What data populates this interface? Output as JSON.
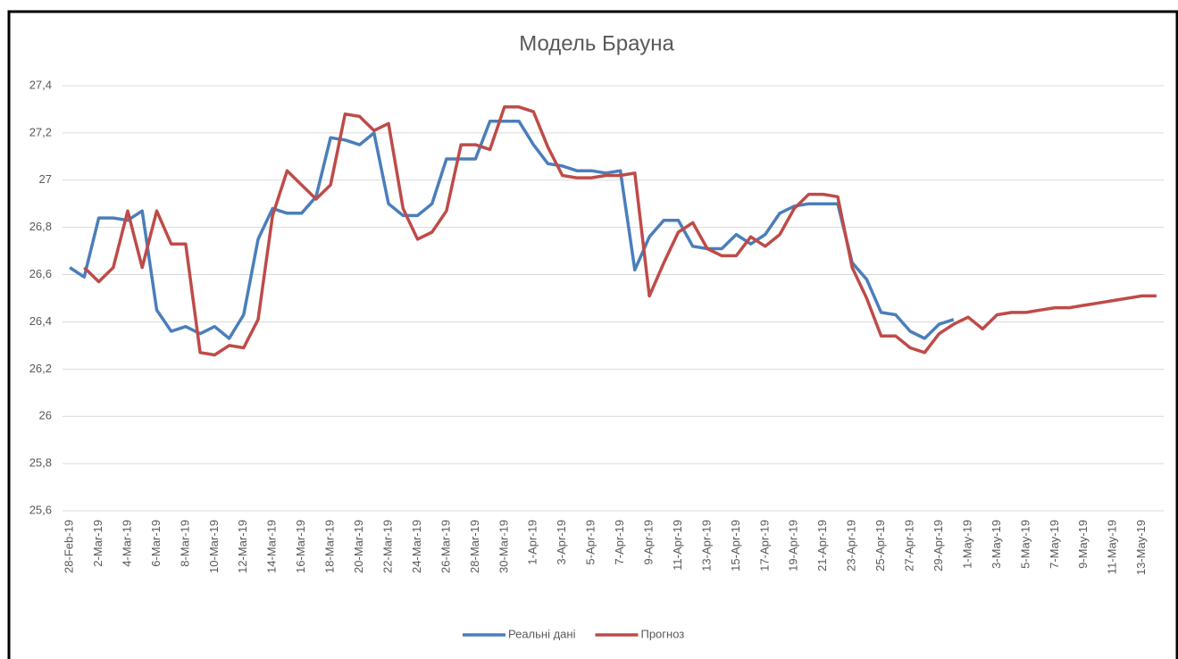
{
  "chart_data": {
    "type": "line",
    "title": "Модель Брауна",
    "categories": [
      "28-Feb-19",
      null,
      "2-Mar-19",
      null,
      "4-Mar-19",
      null,
      "6-Mar-19",
      null,
      "8-Mar-19",
      null,
      "10-Mar-19",
      null,
      "12-Mar-19",
      null,
      "14-Mar-19",
      null,
      "16-Mar-19",
      null,
      "18-Mar-19",
      null,
      "20-Mar-19",
      null,
      "22-Mar-19",
      null,
      "24-Mar-19",
      null,
      "26-Mar-19",
      null,
      "28-Mar-19",
      null,
      "30-Mar-19",
      null,
      "1-Apr-19",
      null,
      "3-Apr-19",
      null,
      "5-Apr-19",
      null,
      "7-Apr-19",
      null,
      "9-Apr-19",
      null,
      "11-Apr-19",
      null,
      "13-Apr-19",
      null,
      "15-Apr-19",
      null,
      "17-Apr-19",
      null,
      "19-Apr-19",
      null,
      "21-Apr-19",
      null,
      "23-Apr-19",
      null,
      "25-Apr-19",
      null,
      "27-Apr-19",
      null,
      "29-Apr-19",
      null,
      "1-May-19",
      null,
      "3-May-19",
      null,
      "5-May-19",
      null,
      "7-May-19",
      null,
      "9-May-19",
      null,
      "11-May-19",
      null,
      "13-May-19",
      null
    ],
    "series": [
      {
        "name": "Реальні дані",
        "color": "#4a7ebb",
        "values": [
          26.63,
          26.59,
          26.84,
          26.84,
          26.83,
          26.87,
          26.45,
          26.36,
          26.38,
          26.35,
          26.38,
          26.33,
          26.43,
          26.75,
          26.88,
          26.86,
          26.86,
          26.93,
          27.18,
          27.17,
          27.15,
          27.2,
          26.9,
          26.85,
          26.85,
          26.9,
          27.09,
          27.09,
          27.09,
          27.25,
          27.25,
          27.25,
          27.15,
          27.07,
          27.06,
          27.04,
          27.04,
          27.03,
          27.04,
          26.62,
          26.76,
          26.83,
          26.83,
          26.72,
          26.71,
          26.71,
          26.77,
          26.73,
          26.77,
          26.86,
          26.89,
          26.9,
          26.9,
          26.9,
          26.65,
          26.58,
          26.44,
          26.43,
          26.36,
          26.33,
          26.39,
          26.41,
          null,
          null,
          null,
          null,
          null,
          null,
          null,
          null,
          null,
          null,
          null,
          null,
          null,
          null
        ]
      },
      {
        "name": "Прогноз",
        "color": "#be4b48",
        "values": [
          null,
          26.63,
          26.57,
          26.63,
          26.87,
          26.63,
          26.87,
          26.73,
          26.73,
          26.27,
          26.26,
          26.3,
          26.29,
          26.41,
          26.85,
          27.04,
          26.98,
          26.92,
          26.98,
          27.28,
          27.27,
          27.21,
          27.24,
          26.88,
          26.75,
          26.78,
          26.87,
          27.15,
          27.15,
          27.13,
          27.31,
          27.31,
          27.29,
          27.14,
          27.02,
          27.01,
          27.01,
          27.02,
          27.02,
          27.03,
          26.51,
          26.65,
          26.78,
          26.82,
          26.71,
          26.68,
          26.68,
          26.76,
          26.72,
          26.77,
          26.88,
          26.94,
          26.94,
          26.93,
          26.63,
          26.5,
          26.34,
          26.34,
          26.29,
          26.27,
          26.35,
          26.39,
          26.42,
          26.37,
          26.43,
          26.44,
          26.44,
          26.45,
          26.46,
          26.46,
          26.47,
          26.48,
          26.49,
          26.5,
          26.51,
          26.51
        ]
      }
    ],
    "ylim": [
      25.6,
      27.4
    ],
    "yticks": [
      {
        "value": 25.6,
        "label": "25,6"
      },
      {
        "value": 25.8,
        "label": "25,8"
      },
      26,
      {
        "value": 26.2,
        "label": "26,2"
      },
      {
        "value": 26.4,
        "label": "26,4"
      },
      {
        "value": 26.6,
        "label": "26,6"
      },
      {
        "value": 26.8,
        "label": "26,8"
      },
      27,
      {
        "value": 27.2,
        "label": "27,2"
      },
      {
        "value": 27.4,
        "label": "27,4"
      }
    ],
    "grid": true,
    "legend": "bottom"
  }
}
